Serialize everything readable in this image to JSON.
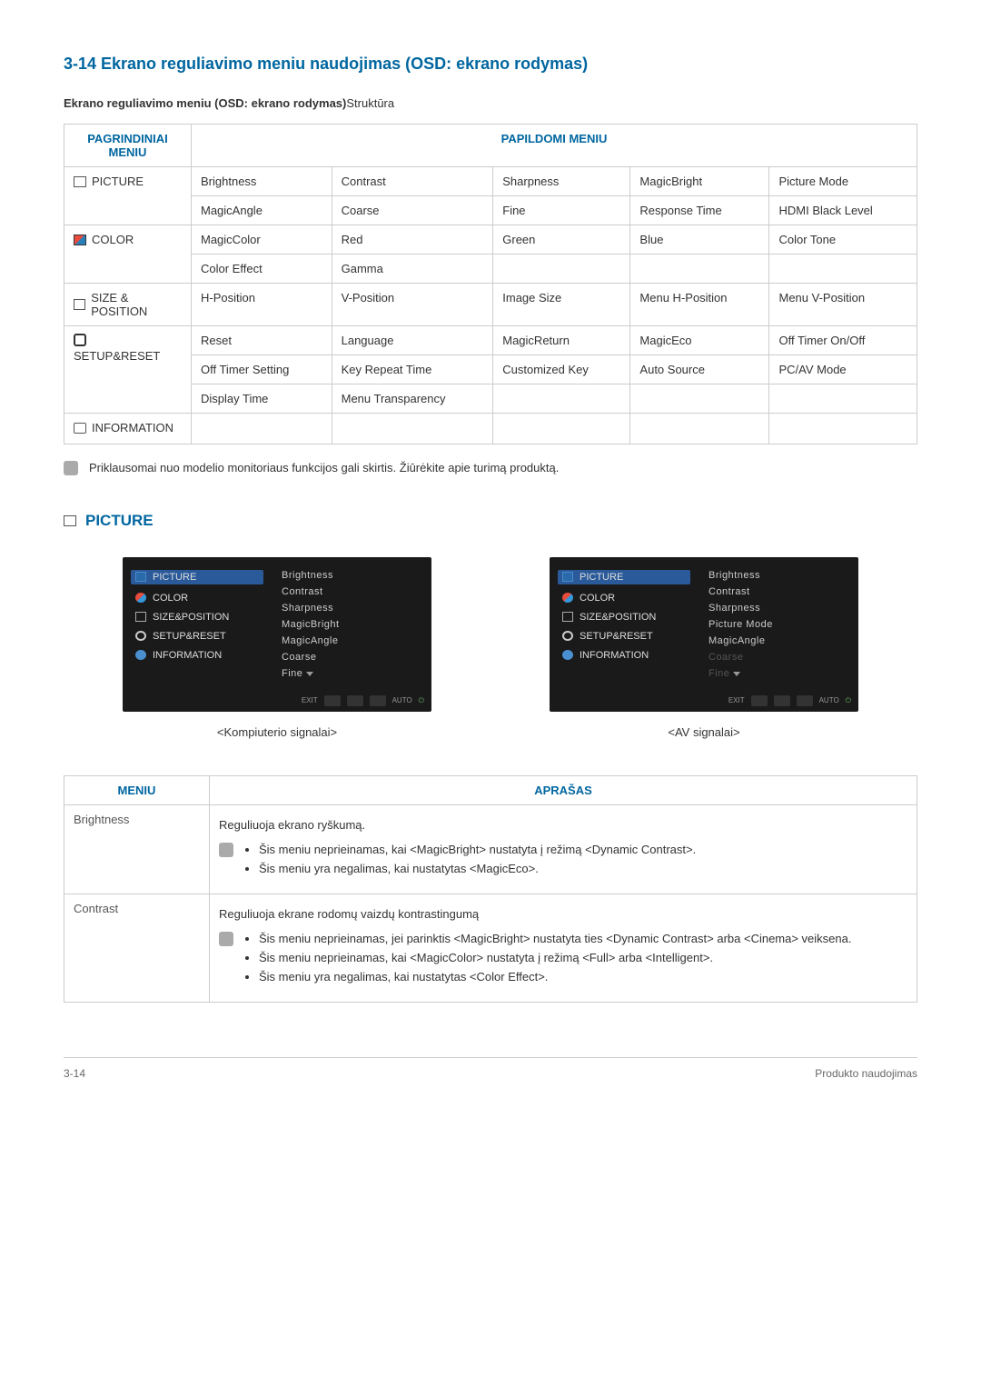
{
  "title": "3-14  Ekrano reguliavimo meniu naudojimas (OSD: ekrano rodymas)",
  "subtitle_bold": "Ekrano reguliavimo meniu (OSD: ekrano rodymas)",
  "subtitle_normal": "Struktūra",
  "main_header": "PAGRINDINIAI MENIU",
  "sub_header": "PAPILDOMI MENIU",
  "rows": {
    "picture": {
      "label": "PICTURE",
      "cells": [
        "Brightness",
        "Contrast",
        "Sharpness",
        "MagicBright",
        "Picture Mode",
        "MagicAngle",
        "Coarse",
        "Fine",
        "Response Time",
        "HDMI Black Level"
      ]
    },
    "color": {
      "label": "COLOR",
      "cells": [
        "MagicColor",
        "Red",
        "Green",
        "Blue",
        "Color Tone",
        "Color Effect",
        "Gamma",
        "",
        "",
        ""
      ]
    },
    "size": {
      "label": "SIZE & POSITION",
      "cells": [
        "H-Position",
        "V-Position",
        "Image Size",
        "Menu H-Position",
        "Menu V-Position"
      ]
    },
    "setup": {
      "label": "SETUP&RESET",
      "cells": [
        "Reset",
        "Language",
        "MagicReturn",
        "MagicEco",
        "Off Timer On/Off",
        "Off Timer Setting",
        "Key Repeat Time",
        "Customized Key",
        "Auto Source",
        "PC/AV Mode",
        "Display Time",
        "Menu Transparency",
        "",
        "",
        ""
      ]
    },
    "info": {
      "label": "INFORMATION"
    }
  },
  "note_text": "Priklausomai nuo modelio monitoriaus funkcijos gali skirtis. Žiūrėkite apie turimą produktą.",
  "picture_header": "PICTURE",
  "osd": {
    "nav": [
      "PICTURE",
      "COLOR",
      "SIZE&POSITION",
      "SETUP&RESET",
      "INFORMATION"
    ],
    "left_items": [
      "Brightness",
      "Contrast",
      "Sharpness",
      "MagicBright",
      "MagicAngle",
      "Coarse",
      "Fine"
    ],
    "right_items": [
      "Brightness",
      "Contrast",
      "Sharpness",
      "Picture Mode",
      "MagicAngle",
      "Coarse",
      "Fine"
    ],
    "exit": "EXIT",
    "auto": "AUTO",
    "caption_left": "<Kompiuterio signalai>",
    "caption_right": "<AV signalai>"
  },
  "desc": {
    "th_menu": "MENIU",
    "th_desc": "APRAŠAS",
    "brightness": {
      "label": "Brightness",
      "text": "Reguliuoja ekrano ryškumą.",
      "b1": "Šis meniu neprieinamas, kai <MagicBright> nustatyta į režimą <Dynamic Contrast>.",
      "b2": "Šis meniu yra negalimas, kai nustatytas <MagicEco>."
    },
    "contrast": {
      "label": "Contrast",
      "text": "Reguliuoja ekrane rodomų vaizdų kontrastingumą",
      "b1": "Šis meniu neprieinamas, jei parinktis <MagicBright> nustatyta ties <Dynamic Contrast> arba <Cinema> veiksena.",
      "b2": "Šis meniu neprieinamas, kai <MagicColor> nustatyta į režimą <Full> arba <Intelligent>.",
      "b3": "Šis meniu yra negalimas, kai nustatytas <Color Effect>."
    }
  },
  "footer_left": "3-14",
  "footer_right": "Produkto naudojimas"
}
